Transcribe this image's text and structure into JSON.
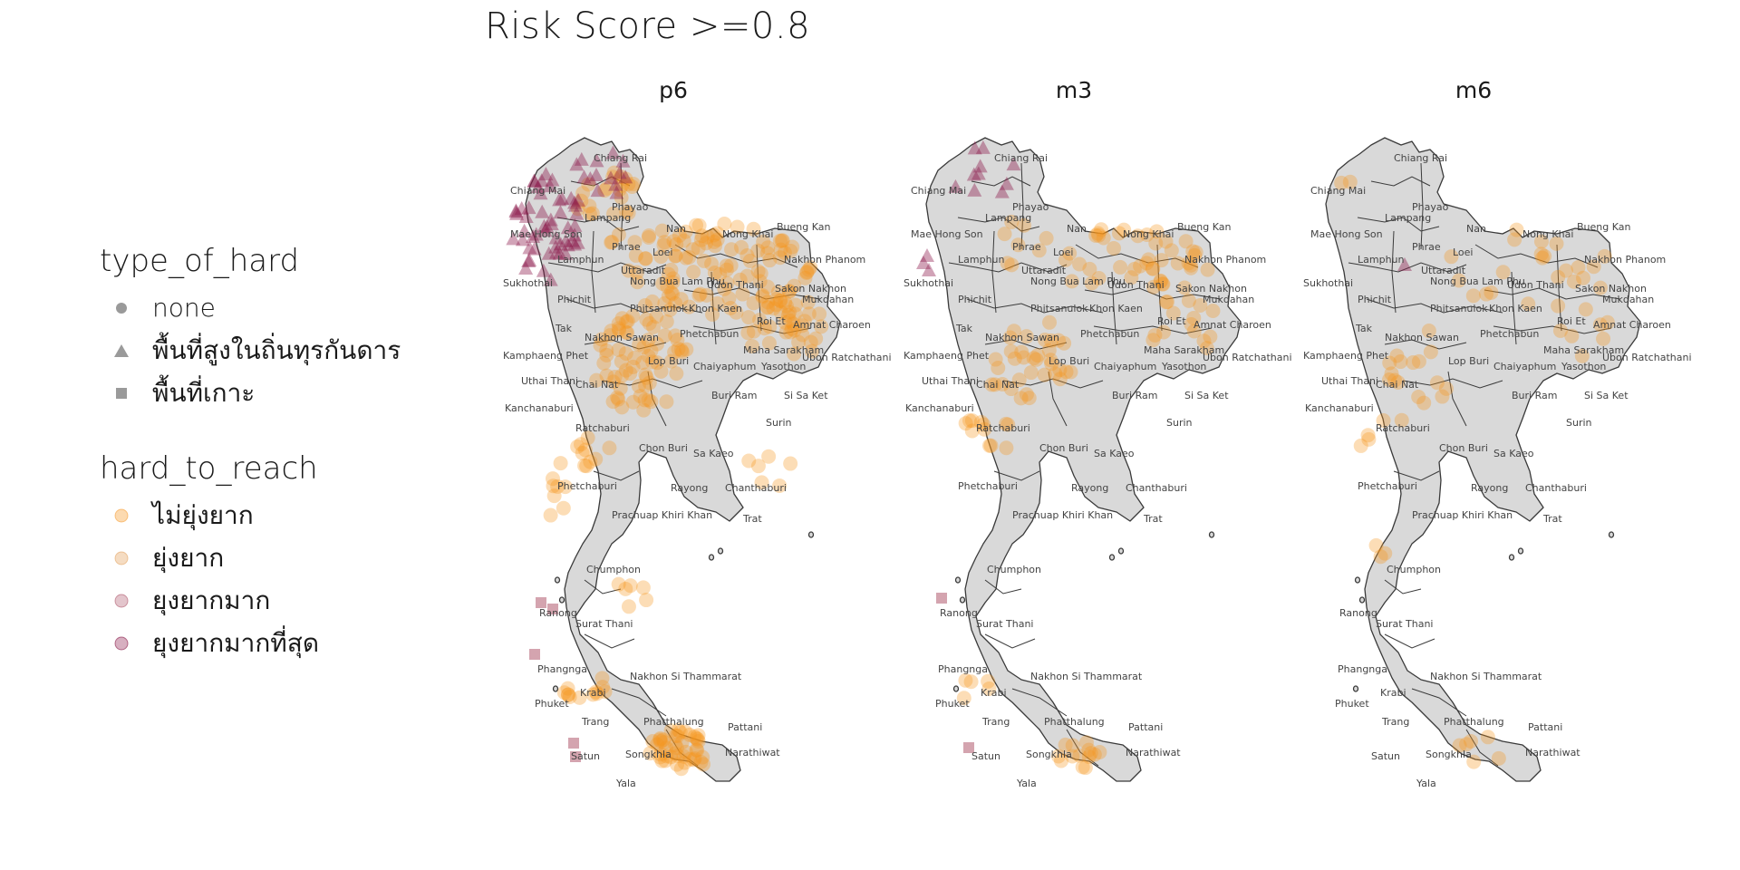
{
  "title": "Risk Score >=0.8",
  "legend": {
    "type_title": "type_of_hard",
    "type_items": [
      {
        "label": "none",
        "shape": "circle"
      },
      {
        "label": "พื้นที่สูงในถิ่นทุรกันดาร",
        "shape": "triangle"
      },
      {
        "label": "พื้นที่เกาะ",
        "shape": "square"
      }
    ],
    "hard_title": "hard_to_reach",
    "hard_items": [
      {
        "label": "ไม่ยุ่งยาก",
        "color": "#f7941d"
      },
      {
        "label": "ยุ่งยาก",
        "color": "#e29a50"
      },
      {
        "label": "ยุงยากมาก",
        "color": "#b05a6e"
      },
      {
        "label": "ยุงยากมากที่สุด",
        "color": "#8b1a4a"
      }
    ]
  },
  "panels": [
    "p6",
    "m3",
    "m6"
  ],
  "provinces": [
    "Chiang Rai",
    "Chiang Mai",
    "Phayao",
    "Nan",
    "Lampang",
    "Mae Hong Son",
    "Lamphun",
    "Phrae",
    "Bueng Kan",
    "Nong Khai",
    "Nakhon Phanom",
    "Loei",
    "Uttaradit",
    "Udon Thani",
    "Sakon Nakhon",
    "Sukhothai",
    "Phichit",
    "Nong Bua Lam Phu",
    "Mukdahan",
    "Phitsanulok",
    "Khon Kaen",
    "Roi Et",
    "Amnat Charoen",
    "Tak",
    "Nakhon Sawan",
    "Phetchabun",
    "Maha Sarakham",
    "Kamphaeng Phet",
    "Lop Buri",
    "Chaiyaphum",
    "Yasothon",
    "Ubon Ratchathani",
    "Uthai Thani",
    "Chai Nat",
    "Buri Ram",
    "Si Sa Ket",
    "Kanchanaburi",
    "Surin",
    "Ratchaburi",
    "Chon Buri",
    "Sa Kaeo",
    "Phetchaburi",
    "Rayong",
    "Chanthaburi",
    "Prachuap Khiri Khan",
    "Trat",
    "Chumphon",
    "Ranong",
    "Surat Thani",
    "Phangnga",
    "Nakhon Si Thammarat",
    "Phuket",
    "Krabi",
    "Phatthalung",
    "Trang",
    "Pattani",
    "Songkhla",
    "Satun",
    "Narathiwat",
    "Yala"
  ],
  "colors": {
    "land": "#d9d9d9",
    "border": "#3a3a3a",
    "not_difficult": "#f7941d",
    "difficult": "#e29a50",
    "very_difficult": "#b05a6e",
    "most_difficult": "#8b1a4a"
  }
}
